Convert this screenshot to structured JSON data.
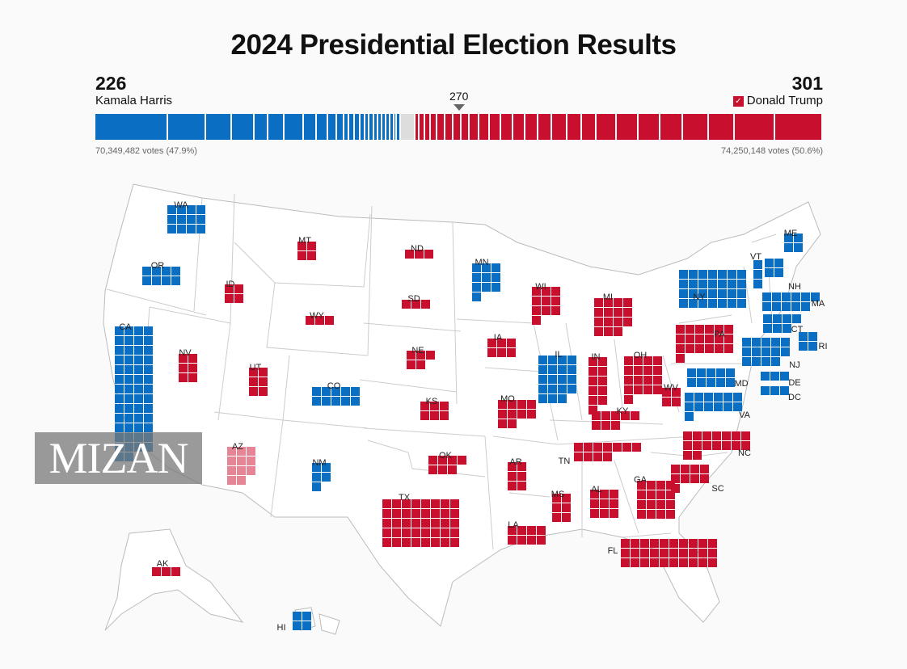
{
  "title": "2024 Presidential Election Results",
  "threshold": "270",
  "colors": {
    "dem": "#0a6fc2",
    "rep": "#c8102e",
    "rep_lean": "#e58595",
    "undecided": "#dddddd"
  },
  "harris": {
    "ev": "226",
    "name": "Kamala Harris",
    "votes": "70,349,482 votes (47.9%)"
  },
  "trump": {
    "ev": "301",
    "name": "Donald Trump",
    "votes": "74,250,148 votes (50.6%)",
    "winner_icon": "check-icon"
  },
  "bar": {
    "harris_ev": 226,
    "undecided_ev": 11,
    "trump_ev": 301
  },
  "watermark": "MIZAN",
  "states": [
    {
      "abbr": "WA",
      "ev": 12,
      "party": "dem"
    },
    {
      "abbr": "OR",
      "ev": 8,
      "party": "dem"
    },
    {
      "abbr": "CA",
      "ev": 54,
      "party": "dem"
    },
    {
      "abbr": "ID",
      "ev": 4,
      "party": "rep"
    },
    {
      "abbr": "NV",
      "ev": 6,
      "party": "rep"
    },
    {
      "abbr": "MT",
      "ev": 4,
      "party": "rep"
    },
    {
      "abbr": "WY",
      "ev": 3,
      "party": "rep"
    },
    {
      "abbr": "UT",
      "ev": 6,
      "party": "rep"
    },
    {
      "abbr": "CO",
      "ev": 10,
      "party": "dem"
    },
    {
      "abbr": "AZ",
      "ev": 11,
      "party": "rep_lean"
    },
    {
      "abbr": "NM",
      "ev": 5,
      "party": "dem"
    },
    {
      "abbr": "ND",
      "ev": 3,
      "party": "rep"
    },
    {
      "abbr": "SD",
      "ev": 3,
      "party": "rep"
    },
    {
      "abbr": "NE",
      "ev": 5,
      "party": "rep"
    },
    {
      "abbr": "KS",
      "ev": 6,
      "party": "rep"
    },
    {
      "abbr": "OK",
      "ev": 7,
      "party": "rep"
    },
    {
      "abbr": "TX",
      "ev": 40,
      "party": "rep"
    },
    {
      "abbr": "MN",
      "ev": 10,
      "party": "dem"
    },
    {
      "abbr": "IA",
      "ev": 6,
      "party": "rep"
    },
    {
      "abbr": "MO",
      "ev": 10,
      "party": "rep"
    },
    {
      "abbr": "AR",
      "ev": 6,
      "party": "rep"
    },
    {
      "abbr": "LA",
      "ev": 8,
      "party": "rep"
    },
    {
      "abbr": "WI",
      "ev": 10,
      "party": "rep"
    },
    {
      "abbr": "IL",
      "ev": 19,
      "party": "dem"
    },
    {
      "abbr": "MI",
      "ev": 15,
      "party": "rep"
    },
    {
      "abbr": "IN",
      "ev": 11,
      "party": "rep"
    },
    {
      "abbr": "OH",
      "ev": 17,
      "party": "rep"
    },
    {
      "abbr": "KY",
      "ev": 8,
      "party": "rep"
    },
    {
      "abbr": "TN",
      "ev": 11,
      "party": "rep"
    },
    {
      "abbr": "MS",
      "ev": 6,
      "party": "rep"
    },
    {
      "abbr": "AL",
      "ev": 9,
      "party": "rep"
    },
    {
      "abbr": "GA",
      "ev": 16,
      "party": "rep"
    },
    {
      "abbr": "FL",
      "ev": 30,
      "party": "rep"
    },
    {
      "abbr": "SC",
      "ev": 9,
      "party": "rep"
    },
    {
      "abbr": "NC",
      "ev": 16,
      "party": "rep"
    },
    {
      "abbr": "VA",
      "ev": 13,
      "party": "dem"
    },
    {
      "abbr": "WV",
      "ev": 4,
      "party": "rep"
    },
    {
      "abbr": "PA",
      "ev": 19,
      "party": "rep"
    },
    {
      "abbr": "NY",
      "ev": 28,
      "party": "dem"
    },
    {
      "abbr": "VT",
      "ev": 3,
      "party": "dem"
    },
    {
      "abbr": "NH",
      "ev": 4,
      "party": "dem"
    },
    {
      "abbr": "ME",
      "ev": 4,
      "party": "dem"
    },
    {
      "abbr": "MA",
      "ev": 11,
      "party": "dem"
    },
    {
      "abbr": "RI",
      "ev": 4,
      "party": "dem"
    },
    {
      "abbr": "CT",
      "ev": 7,
      "party": "dem"
    },
    {
      "abbr": "NJ",
      "ev": 14,
      "party": "dem"
    },
    {
      "abbr": "DE",
      "ev": 3,
      "party": "dem"
    },
    {
      "abbr": "MD",
      "ev": 10,
      "party": "dem"
    },
    {
      "abbr": "DC",
      "ev": 3,
      "party": "dem"
    },
    {
      "abbr": "AK",
      "ev": 3,
      "party": "rep"
    },
    {
      "abbr": "HI",
      "ev": 4,
      "party": "dem"
    }
  ]
}
